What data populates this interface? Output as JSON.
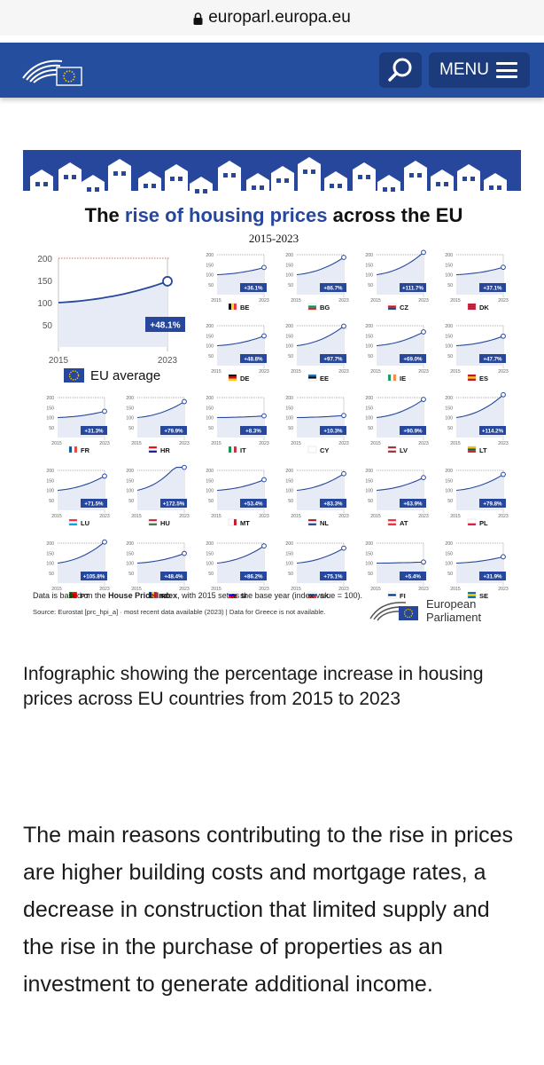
{
  "browser": {
    "url": "europarl.europa.eu"
  },
  "header": {
    "menu_label": "MENU"
  },
  "infographic": {
    "title_prefix": "The ",
    "title_highlight": "rise of housing prices",
    "title_suffix": " across the EU",
    "subtitle": "2015-2023",
    "eu_label": "EU average",
    "note_prefix": "Data is based on the ",
    "note_bold": "House Price Index",
    "note_suffix": ", with 2015 set as the base year (index value = 100).",
    "source": "Source: Eurostat [prc_hpi_a] · most recent data available (2023) | Data for Greece is not available.",
    "ep_logo_line1": "European",
    "ep_logo_line2": "Parliament",
    "colors": {
      "blue": "#26479b",
      "red": "#c0392b",
      "fill": "#e7ebf6"
    }
  },
  "chart_data": {
    "type": "line",
    "title": "The rise of housing prices across the EU",
    "subtitle": "2015-2023",
    "x": [
      2015,
      2023
    ],
    "ylim": [
      0,
      200
    ],
    "y_ticks": [
      50,
      100,
      150,
      200
    ],
    "x_tick_labels": [
      "2015",
      "2023"
    ],
    "eu_average": {
      "name": "EU average",
      "start": 100,
      "end": 148.1,
      "change": "+48.1%"
    },
    "countries": [
      {
        "code": "BE",
        "change": "+36.1%",
        "end": 136.1
      },
      {
        "code": "BG",
        "change": "+86.7%",
        "end": 186.7
      },
      {
        "code": "CZ",
        "change": "+111.7%",
        "end": 211.7
      },
      {
        "code": "DK",
        "change": "+37.1%",
        "end": 137.1
      },
      {
        "code": "DE",
        "change": "+48.8%",
        "end": 148.8
      },
      {
        "code": "EE",
        "change": "+97.7%",
        "end": 197.7
      },
      {
        "code": "IE",
        "change": "+69.0%",
        "end": 169.0
      },
      {
        "code": "ES",
        "change": "+47.7%",
        "end": 147.7
      },
      {
        "code": "FR",
        "change": "+31.3%",
        "end": 131.3
      },
      {
        "code": "HR",
        "change": "+79.9%",
        "end": 179.9
      },
      {
        "code": "IT",
        "change": "+8.3%",
        "end": 108.3
      },
      {
        "code": "CY",
        "change": "+10.3%",
        "end": 110.3
      },
      {
        "code": "LV",
        "change": "+90.9%",
        "end": 190.9
      },
      {
        "code": "LT",
        "change": "+114.2%",
        "end": 214.2
      },
      {
        "code": "LU",
        "change": "+71.5%",
        "end": 171.5
      },
      {
        "code": "HU",
        "change": "+172.5%",
        "end": 272.5
      },
      {
        "code": "MT",
        "change": "+53.4%",
        "end": 153.4
      },
      {
        "code": "NL",
        "change": "+83.3%",
        "end": 183.3
      },
      {
        "code": "AT",
        "change": "+63.9%",
        "end": 163.9
      },
      {
        "code": "PL",
        "change": "+79.8%",
        "end": 179.8
      },
      {
        "code": "PT",
        "change": "+105.8%",
        "end": 205.8
      },
      {
        "code": "RO",
        "change": "+48.4%",
        "end": 148.4
      },
      {
        "code": "SI",
        "change": "+86.2%",
        "end": 186.2
      },
      {
        "code": "SK",
        "change": "+75.1%",
        "end": 175.1
      },
      {
        "code": "FI",
        "change": "+5.4%",
        "end": 105.4
      },
      {
        "code": "SE",
        "change": "+31.9%",
        "end": 131.9
      }
    ]
  },
  "caption": "Infographic showing the percentage increase in housing prices across EU countries from 2015 to 2023",
  "paragraph": "The main reasons contributing to the rise in prices are higher building costs and mortgage rates, a decrease in construction that limited supply and the rise in the purchase of properties as an investment to generate additional income."
}
